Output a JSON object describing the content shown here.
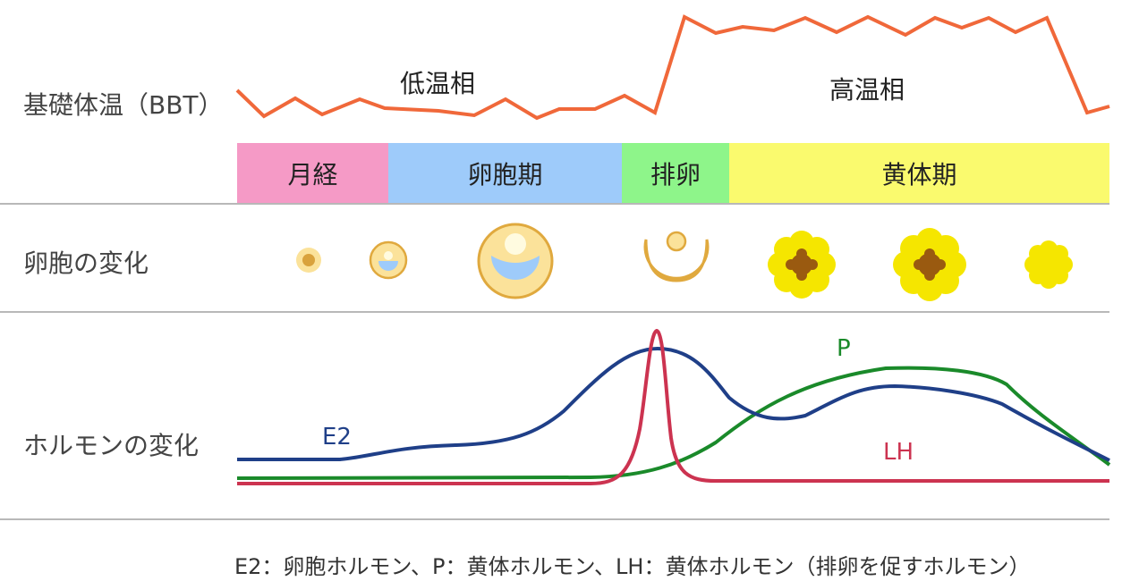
{
  "rows": {
    "bbt_label": "基礎体温（BBT）",
    "follicle_label": "卵胞の変化",
    "hormone_label": "ホルモンの変化"
  },
  "temperature": {
    "low_label": "低温相",
    "high_label": "高温相",
    "color": "#f0683a"
  },
  "phases": [
    {
      "label": "月経",
      "color": "#f59ac6",
      "fraction": 0.173
    },
    {
      "label": "卵胞期",
      "color": "#9ecbfa",
      "fraction": 0.268
    },
    {
      "label": "排卵",
      "color": "#8ef58a",
      "fraction": 0.123
    },
    {
      "label": "黄体期",
      "color": "#fafa6e",
      "fraction": 0.436
    }
  ],
  "hormones": {
    "e2": {
      "label": "E2",
      "color": "#1f3f88"
    },
    "p": {
      "label": "P",
      "color": "#1a8a2a"
    },
    "lh": {
      "label": "LH",
      "color": "#cc3350"
    }
  },
  "legend": "E2：卵胞ホルモン、P：黄体ホルモン、LH：黄体ホルモン（排卵を促すホルモン）"
}
